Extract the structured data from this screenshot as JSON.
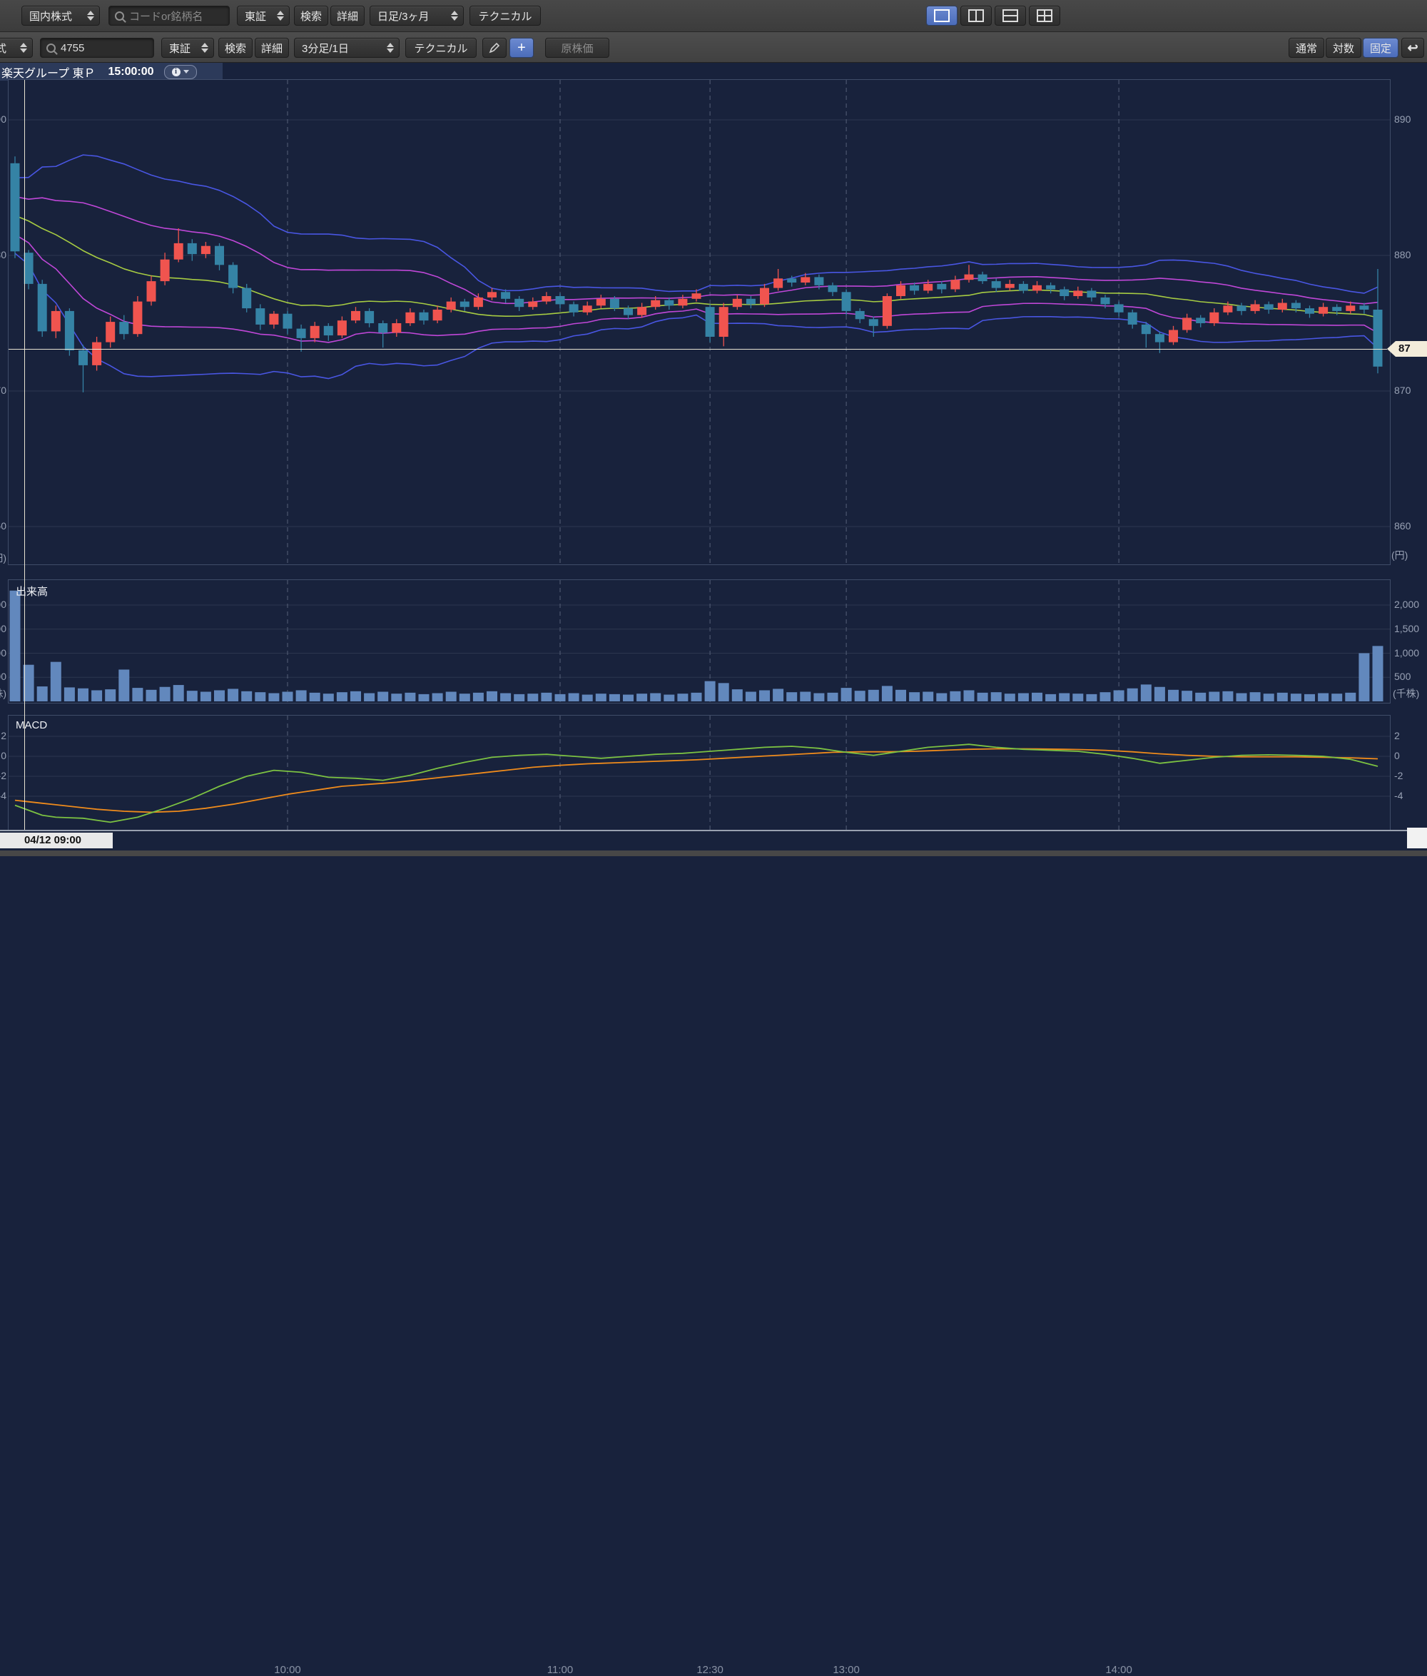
{
  "toolbar_top": {
    "market_select": "国内株式",
    "search_placeholder": "コードor銘柄名",
    "exchange_select": "東証",
    "search_button": "検索",
    "detail_button": "詳細",
    "period_select": "日足/3ヶ月",
    "technical_button": "テクニカル"
  },
  "toolbar_chart": {
    "market_select_clipped": "国内株式",
    "symbol_value": "4755",
    "exchange_select": "東証",
    "search_button": "検索",
    "detail_button": "詳細",
    "period_select": "3分足/1日",
    "technical_button": "テクニカル",
    "raw_price_button": "原株価",
    "scale_normal": "通常",
    "scale_log": "対数",
    "scale_fixed": "固定"
  },
  "chart_header": {
    "name": "楽天グループ 東Ｐ",
    "time": "15:00:00"
  },
  "crosshair": {
    "price_label": "87",
    "date_label": "04/12 09:00"
  },
  "chart_data": {
    "type": "candlestick",
    "title": "楽天グループ 東Ｐ 3分足/1日",
    "x_axis": {
      "labels": [
        "10:00",
        "11:00",
        "12:30",
        "13:00",
        "14:00"
      ],
      "label_bar_index": [
        20,
        40,
        51,
        61,
        81
      ]
    },
    "y_axis_price": {
      "ticks": [
        890,
        880,
        870,
        860
      ],
      "unit": "(円)"
    },
    "candles_ohlc": [
      [
        886.8,
        887.3,
        879.8,
        880.3
      ],
      [
        880.2,
        880.4,
        877.5,
        877.9
      ],
      [
        877.9,
        878.2,
        874.0,
        874.4
      ],
      [
        874.4,
        876.3,
        873.9,
        875.9
      ],
      [
        875.9,
        876.1,
        872.6,
        873.0
      ],
      [
        873.0,
        873.4,
        869.9,
        871.9
      ],
      [
        871.9,
        874.0,
        871.5,
        873.6
      ],
      [
        873.6,
        875.5,
        873.2,
        875.1
      ],
      [
        875.1,
        875.6,
        873.8,
        874.2
      ],
      [
        874.2,
        877.0,
        874.0,
        876.6
      ],
      [
        876.6,
        878.5,
        876.3,
        878.1
      ],
      [
        878.1,
        880.2,
        877.8,
        879.7
      ],
      [
        879.7,
        882.0,
        879.5,
        880.9
      ],
      [
        880.9,
        881.2,
        879.6,
        880.1
      ],
      [
        880.1,
        881.0,
        879.8,
        880.7
      ],
      [
        880.7,
        880.9,
        878.9,
        879.3
      ],
      [
        879.3,
        879.5,
        877.2,
        877.6
      ],
      [
        877.6,
        877.9,
        875.8,
        876.1
      ],
      [
        876.1,
        876.4,
        874.5,
        874.9
      ],
      [
        874.9,
        875.9,
        874.6,
        875.7
      ],
      [
        875.7,
        875.9,
        874.2,
        874.6
      ],
      [
        874.6,
        874.9,
        872.9,
        873.9
      ],
      [
        873.9,
        875.1,
        873.6,
        874.8
      ],
      [
        874.8,
        875.0,
        873.7,
        874.1
      ],
      [
        874.1,
        875.5,
        873.9,
        875.2
      ],
      [
        875.2,
        876.2,
        875.0,
        875.9
      ],
      [
        875.9,
        876.1,
        874.7,
        875.0
      ],
      [
        875.0,
        875.2,
        873.2,
        874.3
      ],
      [
        874.3,
        875.3,
        874.0,
        875.0
      ],
      [
        875.0,
        876.1,
        874.8,
        875.8
      ],
      [
        875.8,
        876.0,
        874.9,
        875.2
      ],
      [
        875.2,
        876.3,
        875.0,
        876.0
      ],
      [
        876.0,
        876.9,
        875.8,
        876.6
      ],
      [
        876.6,
        876.8,
        875.9,
        876.2
      ],
      [
        876.2,
        877.2,
        876.0,
        876.9
      ],
      [
        876.9,
        877.6,
        876.7,
        877.3
      ],
      [
        877.3,
        877.5,
        876.5,
        876.8
      ],
      [
        876.8,
        877.0,
        875.9,
        876.2
      ],
      [
        876.2,
        876.9,
        876.0,
        876.6
      ],
      [
        876.6,
        877.3,
        876.4,
        877.0
      ],
      [
        877.0,
        877.2,
        876.1,
        876.4
      ],
      [
        876.4,
        876.6,
        875.5,
        875.8
      ],
      [
        875.8,
        876.6,
        875.6,
        876.3
      ],
      [
        876.3,
        877.1,
        876.1,
        876.8
      ],
      [
        876.8,
        877.0,
        875.9,
        876.1
      ],
      [
        876.1,
        876.3,
        875.3,
        875.6
      ],
      [
        875.6,
        876.5,
        875.4,
        876.2
      ],
      [
        876.2,
        877.0,
        876.0,
        876.7
      ],
      [
        876.7,
        876.9,
        876.0,
        876.3
      ],
      [
        876.3,
        877.1,
        876.1,
        876.8
      ],
      [
        876.8,
        877.5,
        876.6,
        877.2
      ],
      [
        876.2,
        876.4,
        873.6,
        874.0
      ],
      [
        874.0,
        876.5,
        873.3,
        876.2
      ],
      [
        876.2,
        877.1,
        876.0,
        876.8
      ],
      [
        876.8,
        877.0,
        876.1,
        876.4
      ],
      [
        876.4,
        877.9,
        876.2,
        877.6
      ],
      [
        877.6,
        879.0,
        877.4,
        878.3
      ],
      [
        878.3,
        878.5,
        877.7,
        878.0
      ],
      [
        878.0,
        878.7,
        877.8,
        878.4
      ],
      [
        878.4,
        878.6,
        877.5,
        877.8
      ],
      [
        877.8,
        878.0,
        877.0,
        877.3
      ],
      [
        877.3,
        877.5,
        875.6,
        875.9
      ],
      [
        875.9,
        876.1,
        875.0,
        875.3
      ],
      [
        875.3,
        875.5,
        874.0,
        874.8
      ],
      [
        874.8,
        877.2,
        874.6,
        877.0
      ],
      [
        877.0,
        878.1,
        876.8,
        877.8
      ],
      [
        877.8,
        878.0,
        877.1,
        877.4
      ],
      [
        877.4,
        878.2,
        877.2,
        877.9
      ],
      [
        877.9,
        878.1,
        877.2,
        877.5
      ],
      [
        877.5,
        878.5,
        877.3,
        878.2
      ],
      [
        878.2,
        879.3,
        878.0,
        878.6
      ],
      [
        878.6,
        878.8,
        877.9,
        878.1
      ],
      [
        878.1,
        878.3,
        877.3,
        877.6
      ],
      [
        877.6,
        878.2,
        877.4,
        877.9
      ],
      [
        877.9,
        878.1,
        877.2,
        877.4
      ],
      [
        877.4,
        878.1,
        877.2,
        877.8
      ],
      [
        877.8,
        878.0,
        877.2,
        877.5
      ],
      [
        877.5,
        877.7,
        876.7,
        877.0
      ],
      [
        877.0,
        877.7,
        876.8,
        877.4
      ],
      [
        877.4,
        877.6,
        876.6,
        876.9
      ],
      [
        876.9,
        877.1,
        876.1,
        876.4
      ],
      [
        876.4,
        876.6,
        875.5,
        875.8
      ],
      [
        875.8,
        876.0,
        874.6,
        874.9
      ],
      [
        874.9,
        875.1,
        873.2,
        874.2
      ],
      [
        874.2,
        874.4,
        872.8,
        873.6
      ],
      [
        873.6,
        874.8,
        873.4,
        874.5
      ],
      [
        874.5,
        875.7,
        874.3,
        875.4
      ],
      [
        875.4,
        875.6,
        874.7,
        875.0
      ],
      [
        875.0,
        876.1,
        874.8,
        875.8
      ],
      [
        875.8,
        876.6,
        875.6,
        876.3
      ],
      [
        876.3,
        876.5,
        875.6,
        875.9
      ],
      [
        875.9,
        876.7,
        875.7,
        876.4
      ],
      [
        876.4,
        876.6,
        875.7,
        876.0
      ],
      [
        876.0,
        876.8,
        875.8,
        876.5
      ],
      [
        876.5,
        876.7,
        875.8,
        876.1
      ],
      [
        876.1,
        876.3,
        875.4,
        875.7
      ],
      [
        875.7,
        876.5,
        875.5,
        876.2
      ],
      [
        876.2,
        876.4,
        875.6,
        875.9
      ],
      [
        875.9,
        876.6,
        875.7,
        876.3
      ],
      [
        876.3,
        876.5,
        875.7,
        876.0
      ],
      [
        876.0,
        879.0,
        871.3,
        871.8
      ]
    ],
    "volume": {
      "label": "出来高",
      "ticks": [
        "2,000",
        "1,500",
        "1,000",
        "500"
      ],
      "tick_values": [
        2000,
        1500,
        1000,
        500
      ],
      "unit": "(千株)",
      "values": [
        2300,
        760,
        310,
        820,
        290,
        270,
        230,
        250,
        660,
        280,
        240,
        300,
        340,
        220,
        200,
        230,
        260,
        210,
        190,
        170,
        200,
        230,
        180,
        160,
        190,
        210,
        170,
        200,
        160,
        180,
        150,
        170,
        200,
        160,
        180,
        210,
        170,
        150,
        160,
        180,
        150,
        170,
        140,
        160,
        150,
        140,
        160,
        170,
        140,
        160,
        180,
        420,
        380,
        250,
        200,
        230,
        260,
        190,
        200,
        170,
        180,
        280,
        220,
        240,
        320,
        240,
        190,
        200,
        170,
        210,
        230,
        180,
        190,
        160,
        170,
        180,
        150,
        170,
        160,
        150,
        190,
        230,
        270,
        350,
        300,
        240,
        220,
        180,
        200,
        210,
        170,
        190,
        160,
        180,
        160,
        150,
        170,
        160,
        180,
        1000,
        1150
      ]
    },
    "macd": {
      "label": "MACD",
      "ticks": [
        2,
        0,
        -2,
        -4
      ],
      "macd_points": [
        [
          0,
          -4.9
        ],
        [
          2,
          -5.9
        ],
        [
          3,
          -6.1
        ],
        [
          5,
          -6.2
        ],
        [
          7,
          -6.6
        ],
        [
          9,
          -6.1
        ],
        [
          11,
          -5.2
        ],
        [
          13,
          -4.2
        ],
        [
          15,
          -3.0
        ],
        [
          17,
          -2.0
        ],
        [
          19,
          -1.4
        ],
        [
          21,
          -1.6
        ],
        [
          23,
          -2.1
        ],
        [
          25,
          -2.2
        ],
        [
          27,
          -2.4
        ],
        [
          29,
          -1.9
        ],
        [
          31,
          -1.2
        ],
        [
          33,
          -0.6
        ],
        [
          35,
          -0.1
        ],
        [
          37,
          0.1
        ],
        [
          39,
          0.2
        ],
        [
          41,
          0.0
        ],
        [
          43,
          -0.2
        ],
        [
          45,
          0.0
        ],
        [
          47,
          0.2
        ],
        [
          49,
          0.3
        ],
        [
          51,
          0.5
        ],
        [
          53,
          0.7
        ],
        [
          55,
          0.9
        ],
        [
          57,
          1.0
        ],
        [
          59,
          0.8
        ],
        [
          61,
          0.4
        ],
        [
          63,
          0.1
        ],
        [
          65,
          0.5
        ],
        [
          67,
          0.9
        ],
        [
          70,
          1.2
        ],
        [
          72,
          0.9
        ],
        [
          74,
          0.7
        ],
        [
          76,
          0.6
        ],
        [
          78,
          0.5
        ],
        [
          80,
          0.2
        ],
        [
          82,
          -0.2
        ],
        [
          84,
          -0.7
        ],
        [
          86,
          -0.4
        ],
        [
          88,
          -0.1
        ],
        [
          90,
          0.1
        ],
        [
          92,
          0.15
        ],
        [
          94,
          0.1
        ],
        [
          96,
          0.0
        ],
        [
          98,
          -0.3
        ],
        [
          100,
          -1.0
        ]
      ],
      "signal_points": [
        [
          0,
          -4.4
        ],
        [
          2,
          -4.7
        ],
        [
          4,
          -5.0
        ],
        [
          6,
          -5.3
        ],
        [
          8,
          -5.5
        ],
        [
          10,
          -5.6
        ],
        [
          12,
          -5.5
        ],
        [
          14,
          -5.2
        ],
        [
          16,
          -4.8
        ],
        [
          18,
          -4.3
        ],
        [
          20,
          -3.8
        ],
        [
          22,
          -3.4
        ],
        [
          24,
          -3.0
        ],
        [
          26,
          -2.8
        ],
        [
          28,
          -2.6
        ],
        [
          30,
          -2.3
        ],
        [
          32,
          -2.0
        ],
        [
          34,
          -1.7
        ],
        [
          36,
          -1.4
        ],
        [
          38,
          -1.1
        ],
        [
          40,
          -0.9
        ],
        [
          42,
          -0.75
        ],
        [
          44,
          -0.65
        ],
        [
          46,
          -0.55
        ],
        [
          48,
          -0.45
        ],
        [
          50,
          -0.35
        ],
        [
          52,
          -0.2
        ],
        [
          54,
          -0.05
        ],
        [
          56,
          0.1
        ],
        [
          58,
          0.25
        ],
        [
          60,
          0.4
        ],
        [
          62,
          0.45
        ],
        [
          64,
          0.45
        ],
        [
          66,
          0.5
        ],
        [
          68,
          0.6
        ],
        [
          70,
          0.7
        ],
        [
          72,
          0.75
        ],
        [
          74,
          0.75
        ],
        [
          76,
          0.72
        ],
        [
          78,
          0.68
        ],
        [
          80,
          0.6
        ],
        [
          82,
          0.45
        ],
        [
          84,
          0.25
        ],
        [
          86,
          0.1
        ],
        [
          88,
          0.0
        ],
        [
          90,
          -0.05
        ],
        [
          92,
          -0.05
        ],
        [
          94,
          -0.05
        ],
        [
          96,
          -0.1
        ],
        [
          98,
          -0.15
        ],
        [
          100,
          -0.25
        ]
      ]
    },
    "bollinger": {
      "window": 20,
      "seed_closes": [
        886.5,
        886.0,
        885.5,
        885.0,
        884.5,
        884.0,
        883.6,
        883.2,
        882.9,
        882.6,
        882.4,
        882.2,
        882.0,
        881.9,
        881.8,
        881.8,
        881.9,
        882.1,
        882.4,
        882.8
      ]
    },
    "colors": {
      "up_candle": "#f0544f",
      "down_candle": "#3583a5",
      "bollinger_outer": "#4956e3",
      "bollinger_inner": "#c047d8",
      "bollinger_mid": "#a7cc42",
      "macd_line": "#7cc242",
      "macd_signal": "#ef8b1c",
      "volume_bar": "#6288bd",
      "background": "#18223c",
      "accent_blue": "#4b6cba",
      "crosshair": "#e9e4d3"
    }
  }
}
